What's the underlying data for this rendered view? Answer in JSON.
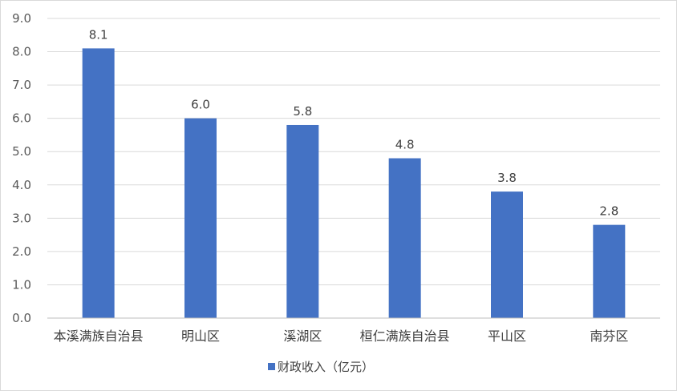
{
  "chart_data": {
    "type": "bar",
    "categories": [
      "本溪满族自治县",
      "明山区",
      "溪湖区",
      "桓仁满族自治县",
      "平山区",
      "南芬区"
    ],
    "series": [
      {
        "name": "财政收入（亿元）",
        "values": [
          8.1,
          6.0,
          5.8,
          4.8,
          3.8,
          2.8
        ],
        "color": "#4472c4"
      }
    ],
    "yticks": [
      "0.0",
      "1.0",
      "2.0",
      "3.0",
      "4.0",
      "5.0",
      "6.0",
      "7.0",
      "8.0",
      "9.0"
    ],
    "ylim": [
      0,
      9
    ],
    "grid": true,
    "legend": "bottom"
  }
}
